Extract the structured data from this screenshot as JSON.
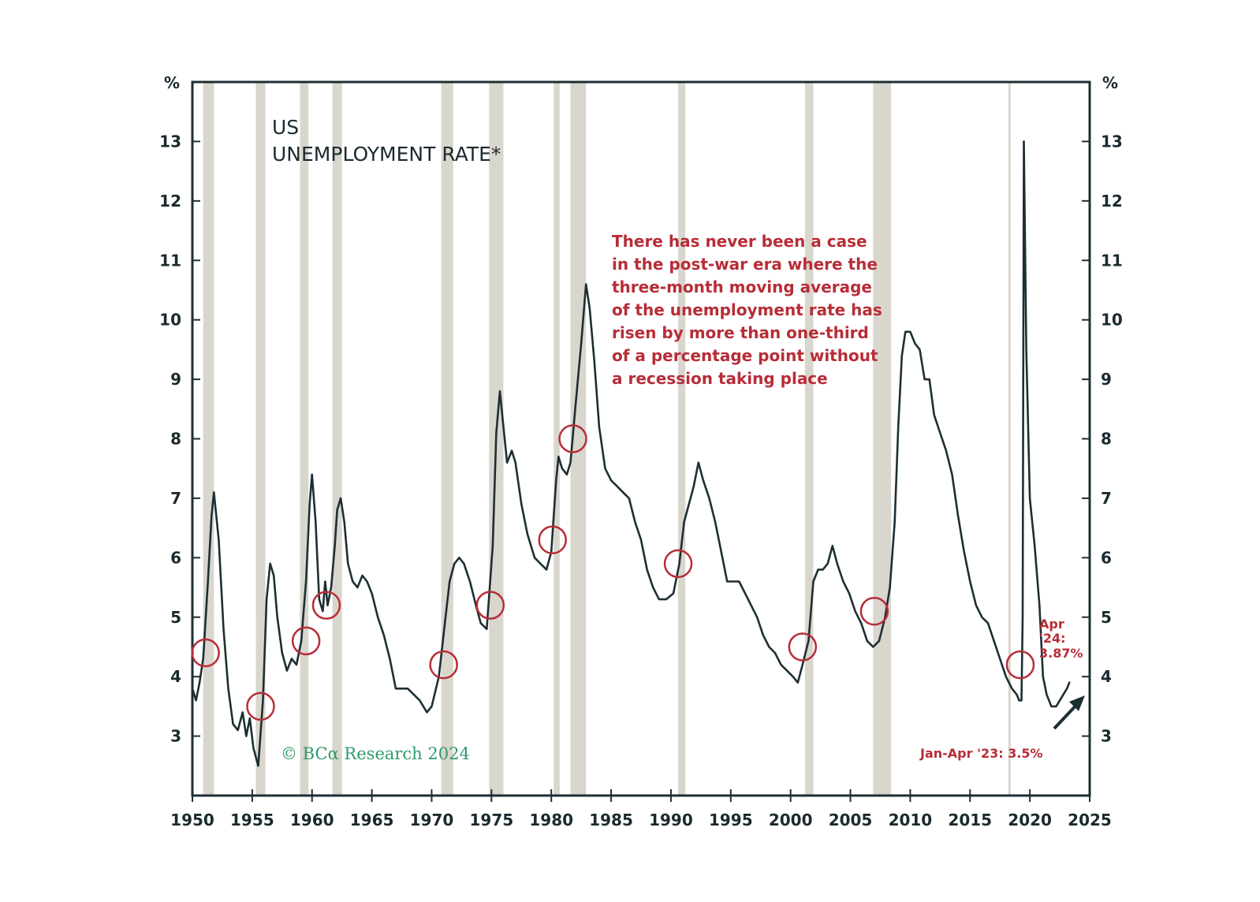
{
  "colors": {
    "line": "#1d2f33",
    "axis": "#1d2f33",
    "recession": "#d9d6cd",
    "annotation": "#b72d37",
    "watermark": "#2f9a6a"
  },
  "chart_data": {
    "type": "line",
    "title_line1": "US",
    "title_line2": "UNEMPLOYMENT RATE*",
    "y_unit_left": "%",
    "y_unit_right": "%",
    "xlim": [
      1950,
      2025
    ],
    "ylim": [
      2,
      14
    ],
    "x_ticks": [
      1950,
      1955,
      1960,
      1965,
      1970,
      1975,
      1980,
      1985,
      1990,
      1995,
      2000,
      2005,
      2010,
      2015,
      2020,
      2025
    ],
    "x_tick_labels": [
      "1950",
      "1955",
      "1960",
      "1965",
      "1970",
      "1975",
      "1980",
      "1985",
      "1990",
      "1995",
      "2000",
      "2005",
      "2010",
      "2015",
      "2020",
      "2025"
    ],
    "y_ticks": [
      3,
      4,
      5,
      6,
      7,
      8,
      9,
      10,
      11,
      12,
      13
    ],
    "y_tick_labels": [
      "3",
      "4",
      "5",
      "6",
      "7",
      "8",
      "9",
      "10",
      "11",
      "12",
      "13"
    ],
    "recessions": [
      [
        1950.9,
        1951.8
      ],
      [
        1955.3,
        1956.1
      ],
      [
        1959.0,
        1959.7
      ],
      [
        1961.7,
        1962.5
      ],
      [
        1970.8,
        1971.8
      ],
      [
        1974.8,
        1976.0
      ],
      [
        1980.2,
        1980.7
      ],
      [
        1981.6,
        1982.9
      ],
      [
        1990.6,
        1991.2
      ],
      [
        2001.2,
        2001.9
      ],
      [
        2006.9,
        2008.4
      ],
      [
        2018.2,
        2018.4
      ]
    ],
    "series": [
      {
        "name": "US unemployment rate (3-month moving average)",
        "points": [
          [
            1950.0,
            3.8
          ],
          [
            1950.3,
            3.6
          ],
          [
            1950.6,
            3.9
          ],
          [
            1950.9,
            4.3
          ],
          [
            1951.3,
            5.6
          ],
          [
            1951.6,
            6.7
          ],
          [
            1951.8,
            7.1
          ],
          [
            1952.2,
            6.3
          ],
          [
            1952.6,
            4.8
          ],
          [
            1953.0,
            3.8
          ],
          [
            1953.4,
            3.2
          ],
          [
            1953.8,
            3.1
          ],
          [
            1954.2,
            3.4
          ],
          [
            1954.5,
            3.0
          ],
          [
            1954.8,
            3.3
          ],
          [
            1955.1,
            2.8
          ],
          [
            1955.5,
            2.5
          ],
          [
            1955.9,
            3.6
          ],
          [
            1956.2,
            5.3
          ],
          [
            1956.5,
            5.9
          ],
          [
            1956.8,
            5.7
          ],
          [
            1957.1,
            5.0
          ],
          [
            1957.5,
            4.4
          ],
          [
            1957.9,
            4.1
          ],
          [
            1958.3,
            4.3
          ],
          [
            1958.7,
            4.2
          ],
          [
            1959.1,
            4.6
          ],
          [
            1959.5,
            5.6
          ],
          [
            1959.8,
            6.9
          ],
          [
            1960.0,
            7.4
          ],
          [
            1960.3,
            6.6
          ],
          [
            1960.6,
            5.3
          ],
          [
            1960.9,
            5.1
          ],
          [
            1961.1,
            5.6
          ],
          [
            1961.3,
            5.2
          ],
          [
            1961.6,
            5.5
          ],
          [
            1961.9,
            6.2
          ],
          [
            1962.1,
            6.8
          ],
          [
            1962.4,
            7.0
          ],
          [
            1962.7,
            6.6
          ],
          [
            1963.0,
            5.9
          ],
          [
            1963.4,
            5.6
          ],
          [
            1963.8,
            5.5
          ],
          [
            1964.2,
            5.7
          ],
          [
            1964.6,
            5.6
          ],
          [
            1965.0,
            5.4
          ],
          [
            1965.5,
            5.0
          ],
          [
            1966.0,
            4.7
          ],
          [
            1966.5,
            4.3
          ],
          [
            1967.0,
            3.8
          ],
          [
            1967.5,
            3.8
          ],
          [
            1968.0,
            3.8
          ],
          [
            1968.5,
            3.7
          ],
          [
            1969.0,
            3.6
          ],
          [
            1969.6,
            3.4
          ],
          [
            1970.0,
            3.5
          ],
          [
            1970.6,
            4.0
          ],
          [
            1971.1,
            4.9
          ],
          [
            1971.5,
            5.6
          ],
          [
            1971.9,
            5.9
          ],
          [
            1972.3,
            6.0
          ],
          [
            1972.7,
            5.9
          ],
          [
            1973.2,
            5.6
          ],
          [
            1973.7,
            5.2
          ],
          [
            1974.1,
            4.9
          ],
          [
            1974.6,
            4.8
          ],
          [
            1975.1,
            6.2
          ],
          [
            1975.4,
            8.1
          ],
          [
            1975.7,
            8.8
          ],
          [
            1976.0,
            8.2
          ],
          [
            1976.3,
            7.6
          ],
          [
            1976.7,
            7.8
          ],
          [
            1977.0,
            7.6
          ],
          [
            1977.5,
            6.9
          ],
          [
            1978.0,
            6.4
          ],
          [
            1978.6,
            6.0
          ],
          [
            1979.1,
            5.9
          ],
          [
            1979.6,
            5.8
          ],
          [
            1980.0,
            6.1
          ],
          [
            1980.4,
            7.3
          ],
          [
            1980.6,
            7.7
          ],
          [
            1980.9,
            7.5
          ],
          [
            1981.3,
            7.4
          ],
          [
            1981.6,
            7.6
          ],
          [
            1982.0,
            8.5
          ],
          [
            1982.5,
            9.6
          ],
          [
            1982.9,
            10.6
          ],
          [
            1983.2,
            10.2
          ],
          [
            1983.6,
            9.3
          ],
          [
            1984.0,
            8.2
          ],
          [
            1984.5,
            7.5
          ],
          [
            1985.0,
            7.3
          ],
          [
            1985.5,
            7.2
          ],
          [
            1986.0,
            7.1
          ],
          [
            1986.5,
            7.0
          ],
          [
            1987.0,
            6.6
          ],
          [
            1987.5,
            6.3
          ],
          [
            1988.0,
            5.8
          ],
          [
            1988.5,
            5.5
          ],
          [
            1989.0,
            5.3
          ],
          [
            1989.6,
            5.3
          ],
          [
            1990.2,
            5.4
          ],
          [
            1990.7,
            5.9
          ],
          [
            1991.1,
            6.6
          ],
          [
            1991.5,
            6.9
          ],
          [
            1991.9,
            7.2
          ],
          [
            1992.3,
            7.6
          ],
          [
            1992.7,
            7.3
          ],
          [
            1993.2,
            7.0
          ],
          [
            1993.7,
            6.6
          ],
          [
            1994.2,
            6.1
          ],
          [
            1994.7,
            5.6
          ],
          [
            1995.2,
            5.6
          ],
          [
            1995.7,
            5.6
          ],
          [
            1996.2,
            5.4
          ],
          [
            1996.7,
            5.2
          ],
          [
            1997.2,
            5.0
          ],
          [
            1997.7,
            4.7
          ],
          [
            1998.2,
            4.5
          ],
          [
            1998.7,
            4.4
          ],
          [
            1999.2,
            4.2
          ],
          [
            1999.7,
            4.1
          ],
          [
            2000.2,
            4.0
          ],
          [
            2000.6,
            3.9
          ],
          [
            2001.0,
            4.2
          ],
          [
            2001.5,
            4.6
          ],
          [
            2001.9,
            5.6
          ],
          [
            2002.3,
            5.8
          ],
          [
            2002.7,
            5.8
          ],
          [
            2003.1,
            5.9
          ],
          [
            2003.5,
            6.2
          ],
          [
            2003.9,
            5.9
          ],
          [
            2004.4,
            5.6
          ],
          [
            2004.9,
            5.4
          ],
          [
            2005.4,
            5.1
          ],
          [
            2005.9,
            4.9
          ],
          [
            2006.4,
            4.6
          ],
          [
            2006.9,
            4.5
          ],
          [
            2007.4,
            4.6
          ],
          [
            2007.9,
            5.0
          ],
          [
            2008.3,
            5.5
          ],
          [
            2008.7,
            6.6
          ],
          [
            2009.0,
            8.2
          ],
          [
            2009.3,
            9.4
          ],
          [
            2009.6,
            9.8
          ],
          [
            2010.0,
            9.8
          ],
          [
            2010.4,
            9.6
          ],
          [
            2010.8,
            9.5
          ],
          [
            2011.2,
            9.0
          ],
          [
            2011.6,
            9.0
          ],
          [
            2012.0,
            8.4
          ],
          [
            2012.5,
            8.1
          ],
          [
            2013.0,
            7.8
          ],
          [
            2013.5,
            7.4
          ],
          [
            2014.0,
            6.7
          ],
          [
            2014.5,
            6.1
          ],
          [
            2015.0,
            5.6
          ],
          [
            2015.5,
            5.2
          ],
          [
            2016.0,
            5.0
          ],
          [
            2016.5,
            4.9
          ],
          [
            2017.0,
            4.6
          ],
          [
            2017.5,
            4.3
          ],
          [
            2018.0,
            4.0
          ],
          [
            2018.5,
            3.8
          ],
          [
            2018.9,
            3.7
          ],
          [
            2019.1,
            3.6
          ],
          [
            2019.3,
            3.6
          ],
          [
            2019.4,
            5.0
          ],
          [
            2019.5,
            13.0
          ],
          [
            2019.7,
            9.5
          ],
          [
            2020.0,
            7.0
          ],
          [
            2020.4,
            6.2
          ],
          [
            2020.8,
            5.2
          ],
          [
            2021.1,
            4.0
          ],
          [
            2021.4,
            3.7
          ],
          [
            2021.8,
            3.5
          ],
          [
            2022.2,
            3.5
          ],
          [
            2022.5,
            3.6
          ],
          [
            2022.8,
            3.7
          ],
          [
            2023.1,
            3.8
          ],
          [
            2023.3,
            3.9
          ]
        ]
      }
    ],
    "circles": [
      [
        1951.1,
        4.4
      ],
      [
        1955.7,
        3.5
      ],
      [
        1959.5,
        4.6
      ],
      [
        1961.2,
        5.2
      ],
      [
        1971.0,
        4.2
      ],
      [
        1974.9,
        5.2
      ],
      [
        1980.1,
        6.3
      ],
      [
        1981.8,
        8.0
      ],
      [
        1990.6,
        5.9
      ],
      [
        2001.0,
        4.5
      ],
      [
        2007.0,
        5.1
      ],
      [
        2019.2,
        4.2
      ]
    ],
    "annotation_lines": [
      "There has never been a case",
      "in the post-war era where the",
      "three-month moving average",
      "of the unemployment rate has",
      "risen by more than one-third",
      "of a percentage point without",
      "a recession taking place"
    ],
    "latest_label_lines": [
      "Apr",
      "'24:",
      "3.87%"
    ],
    "low_label": "Jan-Apr '23: 3.5%",
    "copyright": "© BCα Research 2024"
  }
}
